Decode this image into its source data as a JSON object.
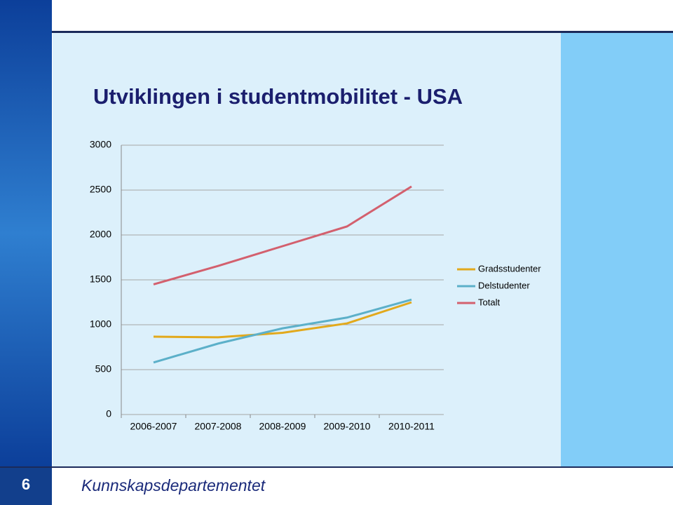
{
  "chart_data": {
    "type": "line",
    "title": "Utviklingen i studentmobilitet - USA",
    "categories": [
      "2006-2007",
      "2007-2008",
      "2008-2009",
      "2009-2010",
      "2010-2011"
    ],
    "series": [
      {
        "name": "Gradsstudenter",
        "color": "#e2a91c",
        "values": [
          867,
          860,
          910,
          1015,
          1250
        ]
      },
      {
        "name": "Delstudenter",
        "color": "#5cb0c9",
        "values": [
          580,
          790,
          960,
          1080,
          1280
        ]
      },
      {
        "name": "Totalt",
        "color": "#d3606e",
        "values": [
          1450,
          1655,
          1875,
          2095,
          2540
        ]
      }
    ],
    "ylim": [
      0,
      3000
    ],
    "yticks": [
      0,
      500,
      1000,
      1500,
      2000,
      2500,
      3000
    ],
    "grid": true,
    "legend": "right"
  },
  "slide": {
    "page_number": 6,
    "footer": "Kunnskapsdepartementet"
  }
}
